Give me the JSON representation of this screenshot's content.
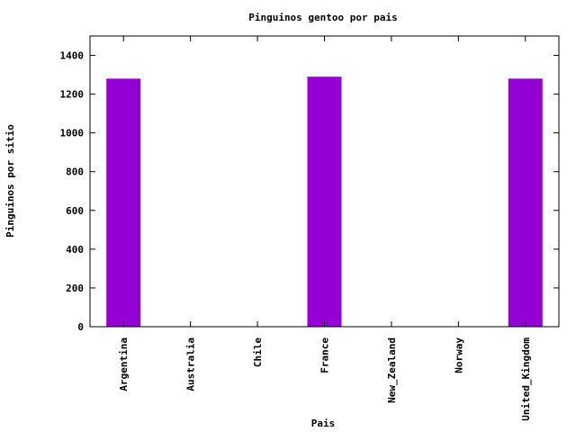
{
  "chart_data": {
    "type": "bar",
    "title": "Pinguinos gentoo por pais",
    "xlabel": "Pais",
    "ylabel": "Pinguinos por sitio",
    "categories": [
      "Argentina",
      "Australia",
      "Chile",
      "France",
      "New_Zealand",
      "Norway",
      "United_Kingdom"
    ],
    "values": [
      1280,
      0,
      0,
      1290,
      0,
      0,
      1280
    ],
    "ylim": [
      0,
      1500
    ],
    "yticks": [
      "0",
      "200",
      "400",
      "600",
      "800",
      "1000",
      "1200",
      "1400"
    ],
    "bar_color": "#9400d3",
    "grid": false,
    "legend": "none"
  }
}
